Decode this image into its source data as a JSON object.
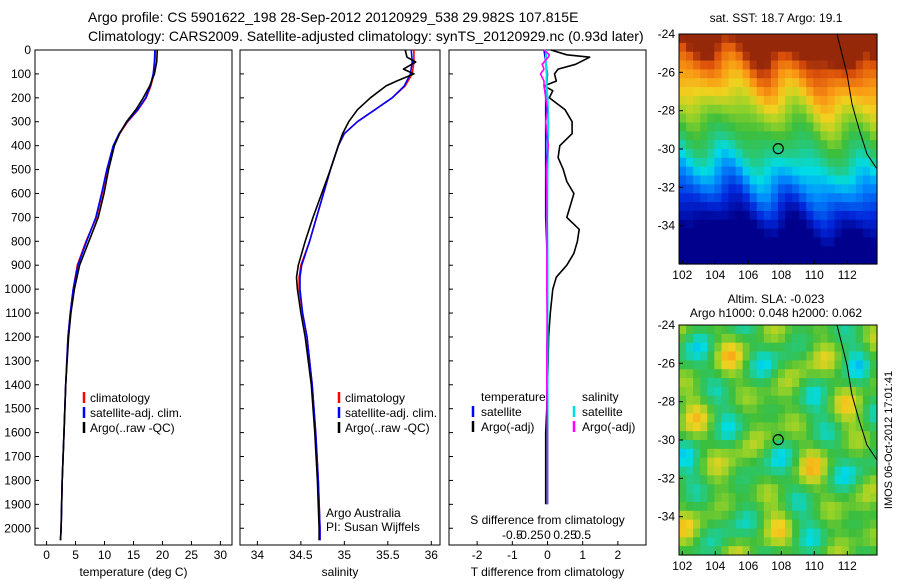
{
  "header": {
    "line1": "Argo profile: CS 5901622_198 28-Sep-2012 20120929_538 29.982S 107.815E",
    "line2": "Climatology: CARS2009. Satellite-adjusted climatology: synTS_20120929.nc (0.93d later)"
  },
  "colors": {
    "climatology": "#ff0000",
    "satellite": "#0000ff",
    "argo": "#000000",
    "salinity_satellite": "#00e0e0",
    "salinity_argo": "#ff00ff"
  },
  "depth_ticks": [
    0,
    100,
    200,
    300,
    400,
    500,
    600,
    700,
    800,
    900,
    1000,
    1100,
    1200,
    1300,
    1400,
    1500,
    1600,
    1700,
    1800,
    1900,
    2000
  ],
  "legend_a": [
    "climatology",
    "satellite-adj. clim.",
    "Argo(..raw -QC)"
  ],
  "legend_b_temperature": [
    "temperature",
    "satellite",
    "Argo(-adj)"
  ],
  "legend_b_salinity": [
    "salinity",
    "satellite",
    "Argo(-adj)"
  ],
  "annotations": {
    "owner": "Argo Australia",
    "pi": "PI: Susan Wijffels"
  },
  "maps": {
    "sst_title": "sat. SST: 18.7 Argo: 19.1",
    "sla_title1": "Altim. SLA: -0.023",
    "sla_title2": "Argo h1000: 0.048 h2000: 0.062",
    "lat_ticks": [
      "-24",
      "-26",
      "-28",
      "-30",
      "-32",
      "-34"
    ],
    "lon_ticks": [
      "102",
      "104",
      "106",
      "108",
      "110",
      "112"
    ],
    "float_lon": 107.815,
    "float_lat": -29.982
  },
  "watermark": "IMOS 06-Oct-2012 17:01:41",
  "chart_data": [
    {
      "type": "line",
      "xlabel": "temperature (deg C)",
      "xticks": [
        0,
        5,
        10,
        15,
        20,
        25,
        30
      ],
      "xlim": [
        -2,
        32
      ],
      "ylim": [
        2070,
        0
      ],
      "series": [
        {
          "name": "climatology",
          "depth": [
            0,
            50,
            100,
            150,
            200,
            250,
            300,
            350,
            400,
            500,
            600,
            700,
            800,
            900,
            1000,
            1100,
            1200,
            1400,
            1600,
            1800,
            2000,
            2050
          ],
          "values": [
            18.8,
            18.7,
            18.5,
            18.0,
            17.2,
            15.8,
            14.0,
            12.6,
            11.6,
            10.5,
            9.6,
            8.6,
            6.8,
            5.3,
            4.6,
            4.1,
            3.7,
            3.3,
            3.0,
            2.7,
            2.5,
            2.4
          ]
        },
        {
          "name": "satellite-adj. clim.",
          "depth": [
            0,
            50,
            100,
            150,
            200,
            250,
            300,
            350,
            400,
            500,
            600,
            700,
            800,
            900,
            1000,
            1100,
            1200,
            1400,
            1600,
            1800,
            2000,
            2050
          ],
          "values": [
            18.7,
            18.6,
            18.4,
            17.9,
            17.1,
            15.7,
            13.9,
            12.5,
            11.5,
            10.4,
            9.5,
            8.5,
            6.9,
            5.4,
            4.6,
            4.1,
            3.7,
            3.3,
            3.0,
            2.7,
            2.5,
            2.4
          ]
        },
        {
          "name": "Argo(..raw -QC)",
          "depth": [
            0,
            50,
            100,
            150,
            200,
            250,
            300,
            350,
            400,
            500,
            600,
            700,
            800,
            900,
            1000,
            1100,
            1200,
            1400,
            1600,
            1800,
            2000,
            2050
          ],
          "values": [
            19.1,
            19.0,
            18.6,
            17.8,
            16.7,
            15.4,
            13.8,
            12.6,
            11.7,
            10.7,
            9.9,
            8.9,
            7.3,
            5.7,
            4.8,
            4.2,
            3.8,
            3.3,
            3.0,
            2.7,
            2.5,
            2.4
          ]
        }
      ]
    },
    {
      "type": "line",
      "xlabel": "salinity",
      "xticks": [
        34,
        34.5,
        35,
        35.5,
        36
      ],
      "xlim": [
        33.8,
        36.1
      ],
      "ylim": [
        2070,
        0
      ],
      "series": [
        {
          "name": "climatology",
          "depth": [
            0,
            50,
            100,
            150,
            200,
            250,
            300,
            350,
            400,
            500,
            600,
            700,
            800,
            900,
            950,
            1000,
            1100,
            1200,
            1400,
            1600,
            1800,
            2000,
            2050
          ],
          "values": [
            35.8,
            35.8,
            35.78,
            35.7,
            35.55,
            35.35,
            35.15,
            35.0,
            34.93,
            34.84,
            34.76,
            34.68,
            34.6,
            34.5,
            34.48,
            34.48,
            34.52,
            34.57,
            34.63,
            34.67,
            34.7,
            34.72,
            34.72
          ]
        },
        {
          "name": "satellite-adj. clim.",
          "depth": [
            0,
            50,
            100,
            150,
            200,
            250,
            300,
            350,
            400,
            500,
            600,
            700,
            800,
            900,
            950,
            1000,
            1100,
            1200,
            1400,
            1600,
            1800,
            2000,
            2050
          ],
          "values": [
            35.77,
            35.78,
            35.76,
            35.69,
            35.55,
            35.35,
            35.15,
            35.0,
            34.93,
            34.84,
            34.76,
            34.68,
            34.6,
            34.51,
            34.49,
            34.49,
            34.52,
            34.57,
            34.63,
            34.67,
            34.7,
            34.72,
            34.72
          ]
        },
        {
          "name": "Argo(..raw -QC)",
          "depth": [
            0,
            30,
            50,
            80,
            100,
            130,
            150,
            200,
            250,
            300,
            350,
            400,
            500,
            600,
            700,
            800,
            900,
            950,
            1000,
            1100,
            1200,
            1400,
            1600,
            1800,
            2000,
            2050
          ],
          "values": [
            35.7,
            35.72,
            35.82,
            35.68,
            35.8,
            35.6,
            35.48,
            35.3,
            35.15,
            35.05,
            34.98,
            34.93,
            34.84,
            34.74,
            34.64,
            34.55,
            34.47,
            34.45,
            34.46,
            34.5,
            34.55,
            34.62,
            34.66,
            34.69,
            34.71,
            34.71
          ]
        }
      ]
    },
    {
      "type": "line",
      "xlabel": "T difference from climatology",
      "xlabel_top": "S difference from climatology",
      "xticks_T": [
        -2,
        -1,
        0,
        1,
        2
      ],
      "xticks_S": [
        "-0.5",
        "-0.25",
        "0",
        "0.25",
        "0.5"
      ],
      "xlim_T": [
        -2.8,
        2.8
      ],
      "ylim": [
        2070,
        0
      ],
      "series": [
        {
          "name": "temperature satellite",
          "depth": [
            0,
            50,
            100,
            200,
            300,
            400,
            500,
            700,
            900,
            1100,
            1300,
            1500,
            1700,
            1900
          ],
          "values": [
            -0.1,
            -0.05,
            0,
            -0.05,
            -0.05,
            -0.05,
            -0.05,
            -0.05,
            0,
            0,
            -0.02,
            -0.02,
            -0.02,
            -0.02
          ]
        },
        {
          "name": "temperature Argo(-adj)",
          "depth": [
            0,
            20,
            30,
            60,
            80,
            100,
            130,
            150,
            170,
            200,
            250,
            300,
            350,
            400,
            450,
            500,
            550,
            600,
            650,
            700,
            750,
            800,
            850,
            900,
            950,
            1000,
            1100,
            1200,
            1300,
            1400,
            1500,
            1600,
            1700,
            1900
          ],
          "values": [
            0.1,
            0.55,
            1.2,
            0.8,
            0.3,
            0.2,
            0.25,
            -0.1,
            0.15,
            0.05,
            0.5,
            0.7,
            0.7,
            0.35,
            0.3,
            0.45,
            0.55,
            0.75,
            0.65,
            0.55,
            0.9,
            0.85,
            0.75,
            0.55,
            0.25,
            0.15,
            0.08,
            0.03,
            0.02,
            0,
            -0.02,
            -0.05,
            -0.05,
            -0.05
          ]
        },
        {
          "name": "salinity satellite",
          "depth": [
            0,
            50,
            100,
            150,
            200,
            300,
            400,
            500,
            700,
            900,
            1100,
            1300,
            1500,
            1700,
            1900
          ],
          "values": [
            -0.03,
            -0.05,
            -0.02,
            -0.03,
            0,
            0.02,
            0.01,
            0,
            -0.01,
            0,
            0,
            0,
            0,
            0,
            0
          ]
        },
        {
          "name": "salinity Argo(-adj)",
          "depth": [
            0,
            20,
            30,
            60,
            80,
            100,
            130,
            150,
            200,
            250,
            300,
            400,
            500,
            600,
            700,
            800,
            900,
            1000,
            1100,
            1200,
            1300,
            1400,
            1500,
            1600,
            1700,
            1900
          ],
          "values": [
            -0.1,
            0.05,
            0.02,
            -0.15,
            -0.1,
            -0.2,
            -0.1,
            -0.1,
            -0.05,
            0,
            -0.05,
            0.02,
            -0.03,
            -0.02,
            -0.01,
            -0.01,
            -0.02,
            -0.02,
            -0.01,
            -0.01,
            -0.02,
            -0.02,
            -0.01,
            0,
            0,
            0
          ]
        }
      ]
    }
  ]
}
